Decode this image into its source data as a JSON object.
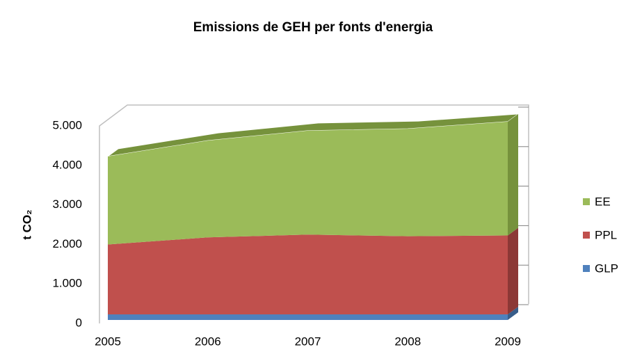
{
  "chart_data": {
    "type": "area3d",
    "title": "Emissions de GEH per fonts d'energia",
    "y_label": "t CO₂",
    "categories": [
      "2005",
      "2006",
      "2007",
      "2008",
      "2009"
    ],
    "series": [
      {
        "name": "GLP",
        "color": "#4f81bd",
        "side": "#385d8a",
        "values": [
          140,
          140,
          140,
          140,
          140
        ]
      },
      {
        "name": "PPL",
        "color": "#c0504d",
        "side": "#8c3836",
        "values": [
          1770,
          1950,
          2020,
          1980,
          2000
        ]
      },
      {
        "name": "EE",
        "color": "#9bbb59",
        "side": "#76923c",
        "values": [
          2230,
          2450,
          2630,
          2720,
          2880
        ]
      }
    ],
    "ylim": [
      0,
      5000
    ],
    "yticks": [
      {
        "value": 0,
        "label": "0"
      },
      {
        "value": 1000,
        "label": "1.000"
      },
      {
        "value": 2000,
        "label": "2.000"
      },
      {
        "value": 3000,
        "label": "3.000"
      },
      {
        "value": 4000,
        "label": "4.000"
      },
      {
        "value": 5000,
        "label": "5.000"
      }
    ]
  }
}
